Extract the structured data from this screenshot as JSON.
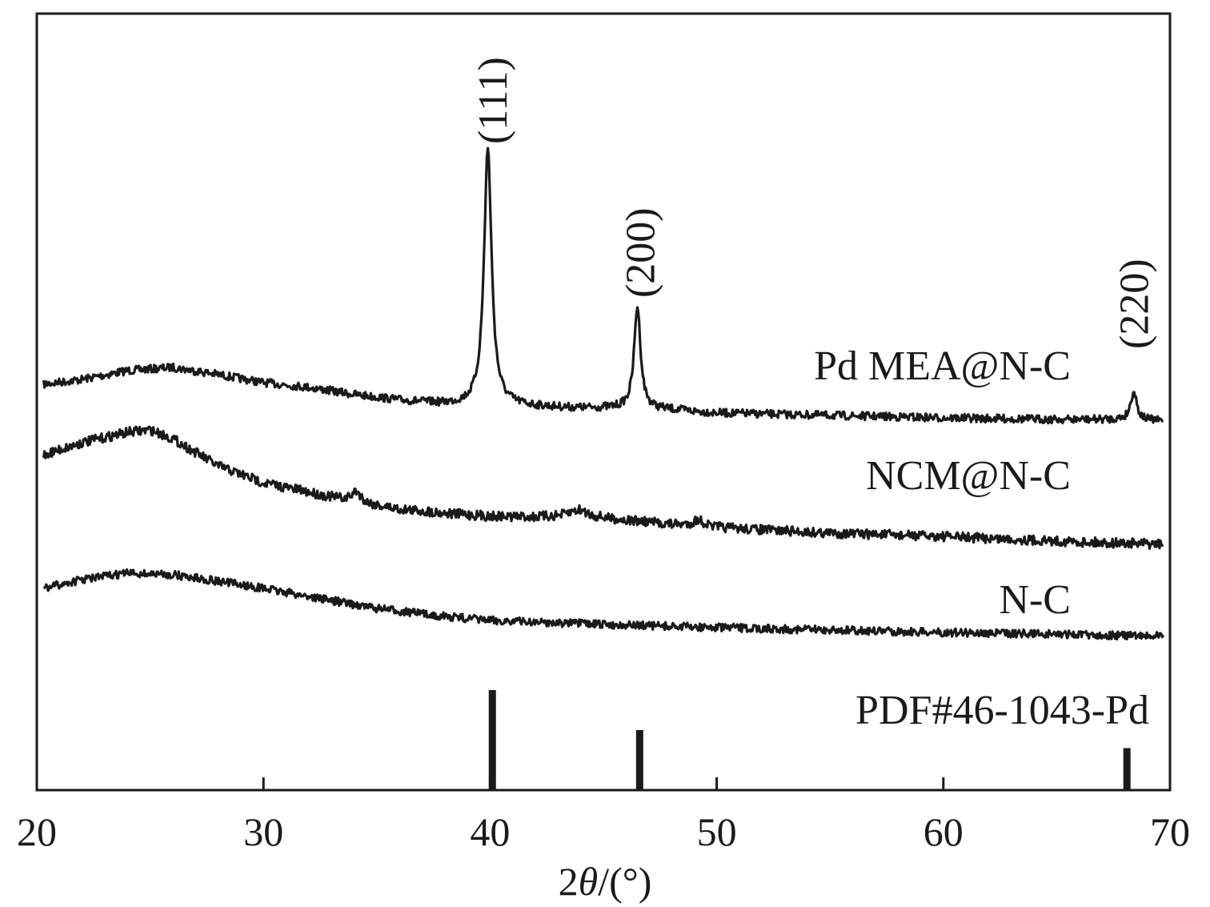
{
  "chart_data": {
    "type": "line",
    "xlabel_prefix": "2",
    "xlabel_symbol": "θ",
    "xlabel_suffix": "/(°)",
    "xlim": [
      20,
      70
    ],
    "x_ticks": [
      20,
      30,
      40,
      50,
      60,
      70
    ],
    "y_axis": "none",
    "grid": false,
    "line_color": "#1a1a1a",
    "series": [
      {
        "name": "Pd MEA@N-C",
        "baseline": [
          [
            20.3,
            480
          ],
          [
            22,
            474
          ],
          [
            24,
            463
          ],
          [
            26,
            459
          ],
          [
            28,
            468
          ],
          [
            30,
            478
          ],
          [
            32,
            484
          ],
          [
            34,
            493
          ],
          [
            36,
            500
          ],
          [
            38,
            505
          ],
          [
            39.3,
            506
          ],
          [
            40,
            505
          ],
          [
            42,
            508
          ],
          [
            44,
            510
          ],
          [
            46,
            510
          ],
          [
            48,
            512
          ],
          [
            50,
            516
          ],
          [
            55,
            519
          ],
          [
            60,
            522
          ],
          [
            65,
            524
          ],
          [
            68,
            524
          ],
          [
            69.7,
            526
          ]
        ],
        "peaks": [
          [
            39.9,
            320,
            0.2
          ],
          [
            46.5,
            128,
            0.17
          ],
          [
            68.4,
            36,
            0.16
          ]
        ],
        "noise": 5
      },
      {
        "name": "NCM@N-C",
        "baseline": [
          [
            20.3,
            568
          ],
          [
            22,
            553
          ],
          [
            24,
            540
          ],
          [
            25,
            537
          ],
          [
            26,
            548
          ],
          [
            28,
            582
          ],
          [
            30,
            603
          ],
          [
            32,
            615
          ],
          [
            34,
            627
          ],
          [
            36,
            636
          ],
          [
            38,
            641
          ],
          [
            40,
            645
          ],
          [
            42,
            646
          ],
          [
            44,
            645
          ],
          [
            46,
            650
          ],
          [
            48,
            655
          ],
          [
            50,
            659
          ],
          [
            55,
            666
          ],
          [
            60,
            670
          ],
          [
            65,
            676
          ],
          [
            69.7,
            680
          ]
        ],
        "peaks": [
          [
            34.1,
            14,
            0.25
          ],
          [
            43.9,
            8,
            0.5
          ],
          [
            49.2,
            8,
            0.3
          ]
        ],
        "noise": 6
      },
      {
        "name": "N-C",
        "baseline": [
          [
            20.3,
            735
          ],
          [
            22,
            724
          ],
          [
            24,
            716
          ],
          [
            26,
            718
          ],
          [
            28,
            726
          ],
          [
            30,
            735
          ],
          [
            32,
            745
          ],
          [
            35,
            760
          ],
          [
            38,
            770
          ],
          [
            40,
            775
          ],
          [
            45,
            780
          ],
          [
            50,
            784
          ],
          [
            55,
            787
          ],
          [
            60,
            790
          ],
          [
            65,
            792
          ],
          [
            69.7,
            795
          ]
        ],
        "peaks": [],
        "noise": 5
      }
    ],
    "reference": {
      "name": "PDF#46-1043-Pd",
      "x": [
        40.1,
        46.6,
        68.1
      ],
      "relative_intensity": [
        100,
        60,
        42
      ]
    },
    "peak_labels": [
      {
        "text": "(111)",
        "x": 40.1
      },
      {
        "text": "(200)",
        "x": 46.6
      },
      {
        "text": "(220)",
        "x": 68.4
      }
    ]
  }
}
